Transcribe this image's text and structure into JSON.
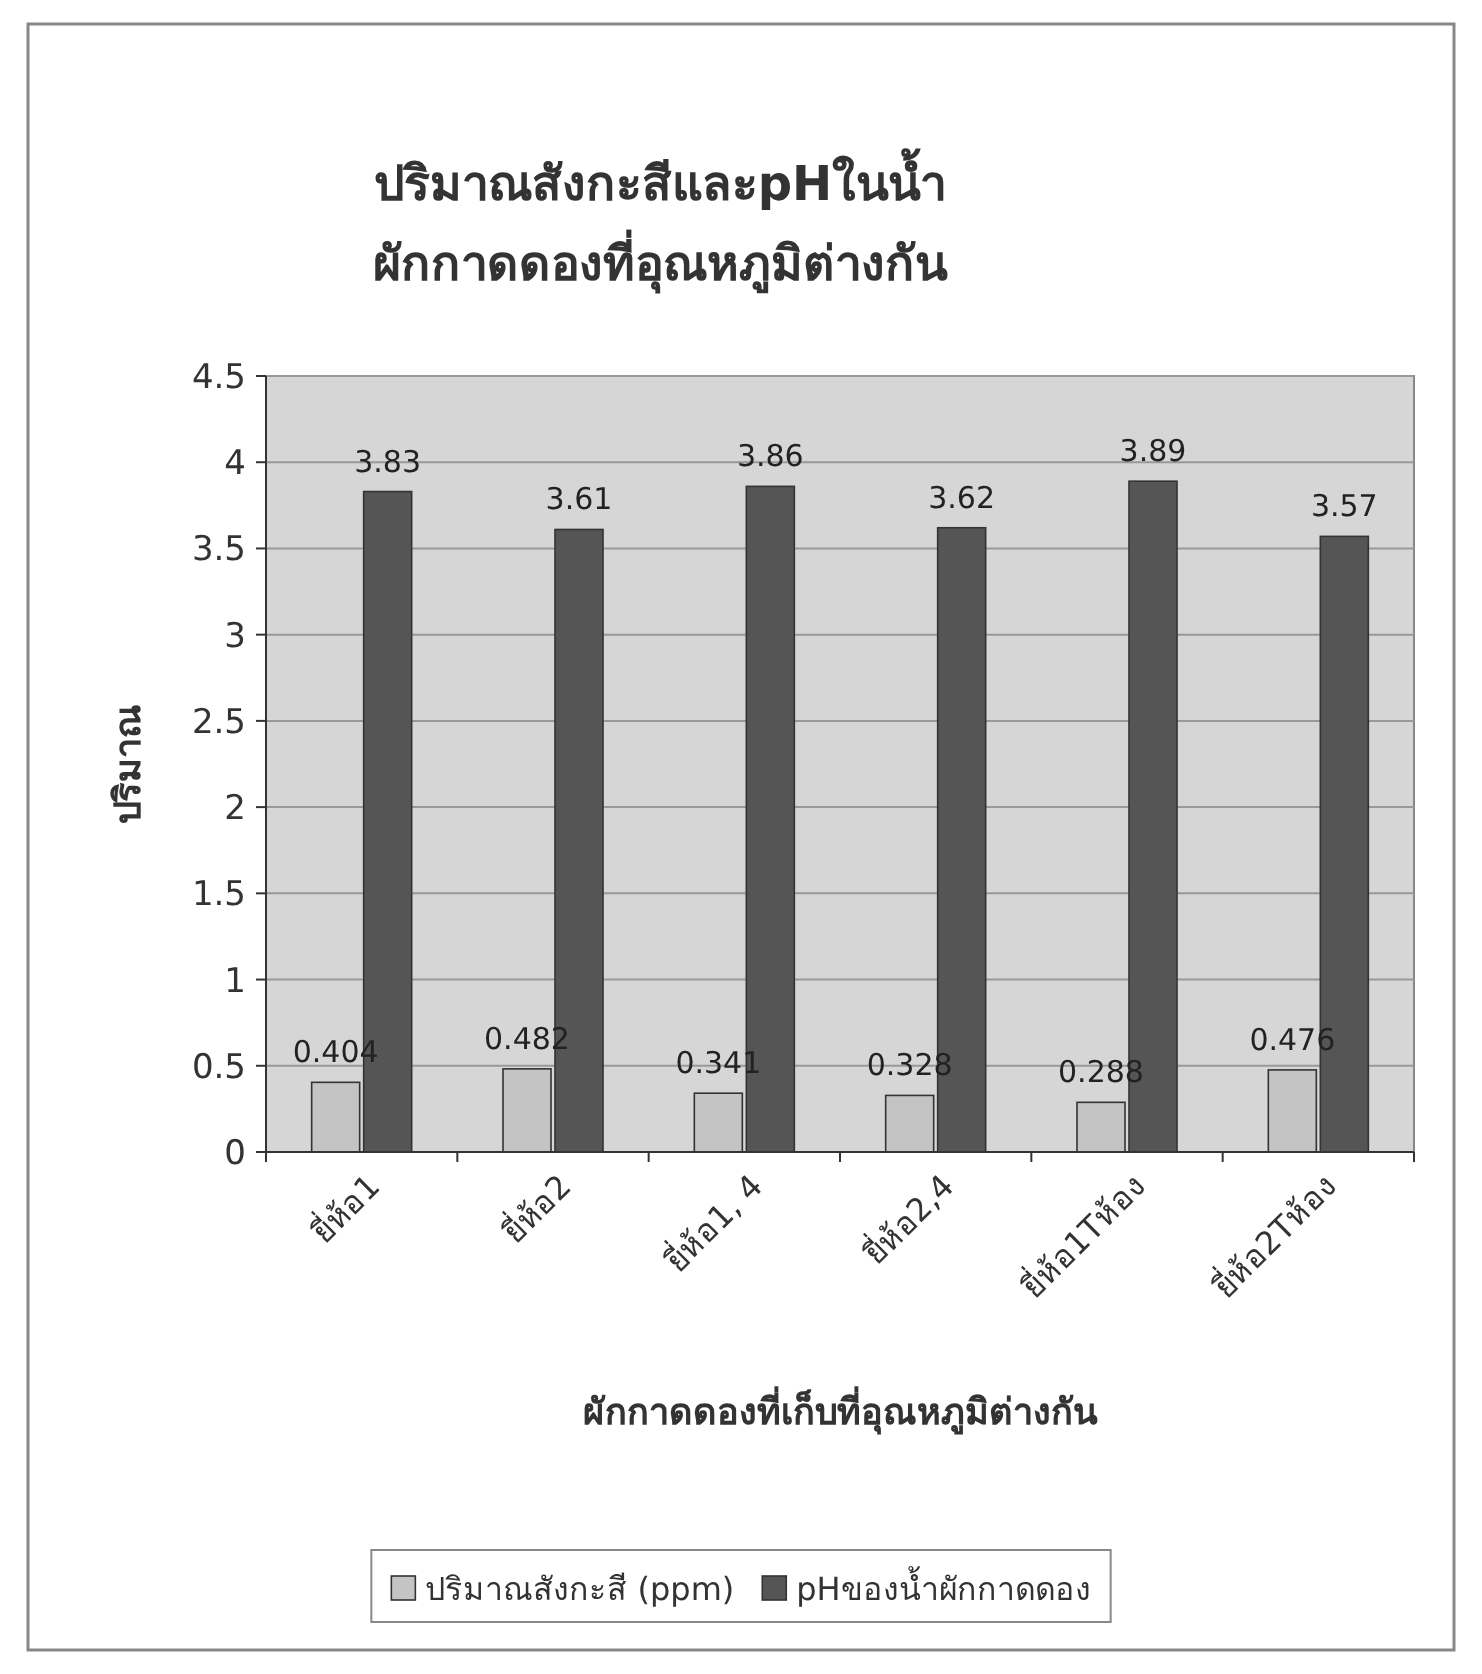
{
  "chart_data": {
    "type": "bar",
    "title": "ปริมาณสังกะสีและpHในน้ำ\nผักกาดดองที่อุณหภูมิต่างกัน",
    "xlabel": "ผักกาดดองที่เก็บที่อุณหภูมิต่างกัน",
    "ylabel": "ปริมาณ",
    "categories": [
      "ยี่ห้อ1",
      "ยี่ห้อ2",
      "ยี่ห้อ1, 4",
      "ยี่ห้อ2,4",
      "ยี่ห้อ1Tห้อง",
      "ยี่ห้อ2Tห้อง"
    ],
    "series": [
      {
        "name": "ปริมาณสังกะสี (ppm)",
        "color": "#c4c4c4",
        "values": [
          0.404,
          0.482,
          0.341,
          0.328,
          0.288,
          0.476
        ]
      },
      {
        "name": "pHของน้ำผักกาดดอง",
        "color": "#555555",
        "values": [
          3.83,
          3.61,
          3.86,
          3.62,
          3.89,
          3.57
        ]
      }
    ],
    "ylim": [
      0,
      4.5
    ],
    "yticks": [
      0,
      0.5,
      1,
      1.5,
      2,
      2.5,
      3,
      3.5,
      4,
      4.5
    ],
    "grid": "y",
    "data_labels": true,
    "legend": "bottom"
  }
}
